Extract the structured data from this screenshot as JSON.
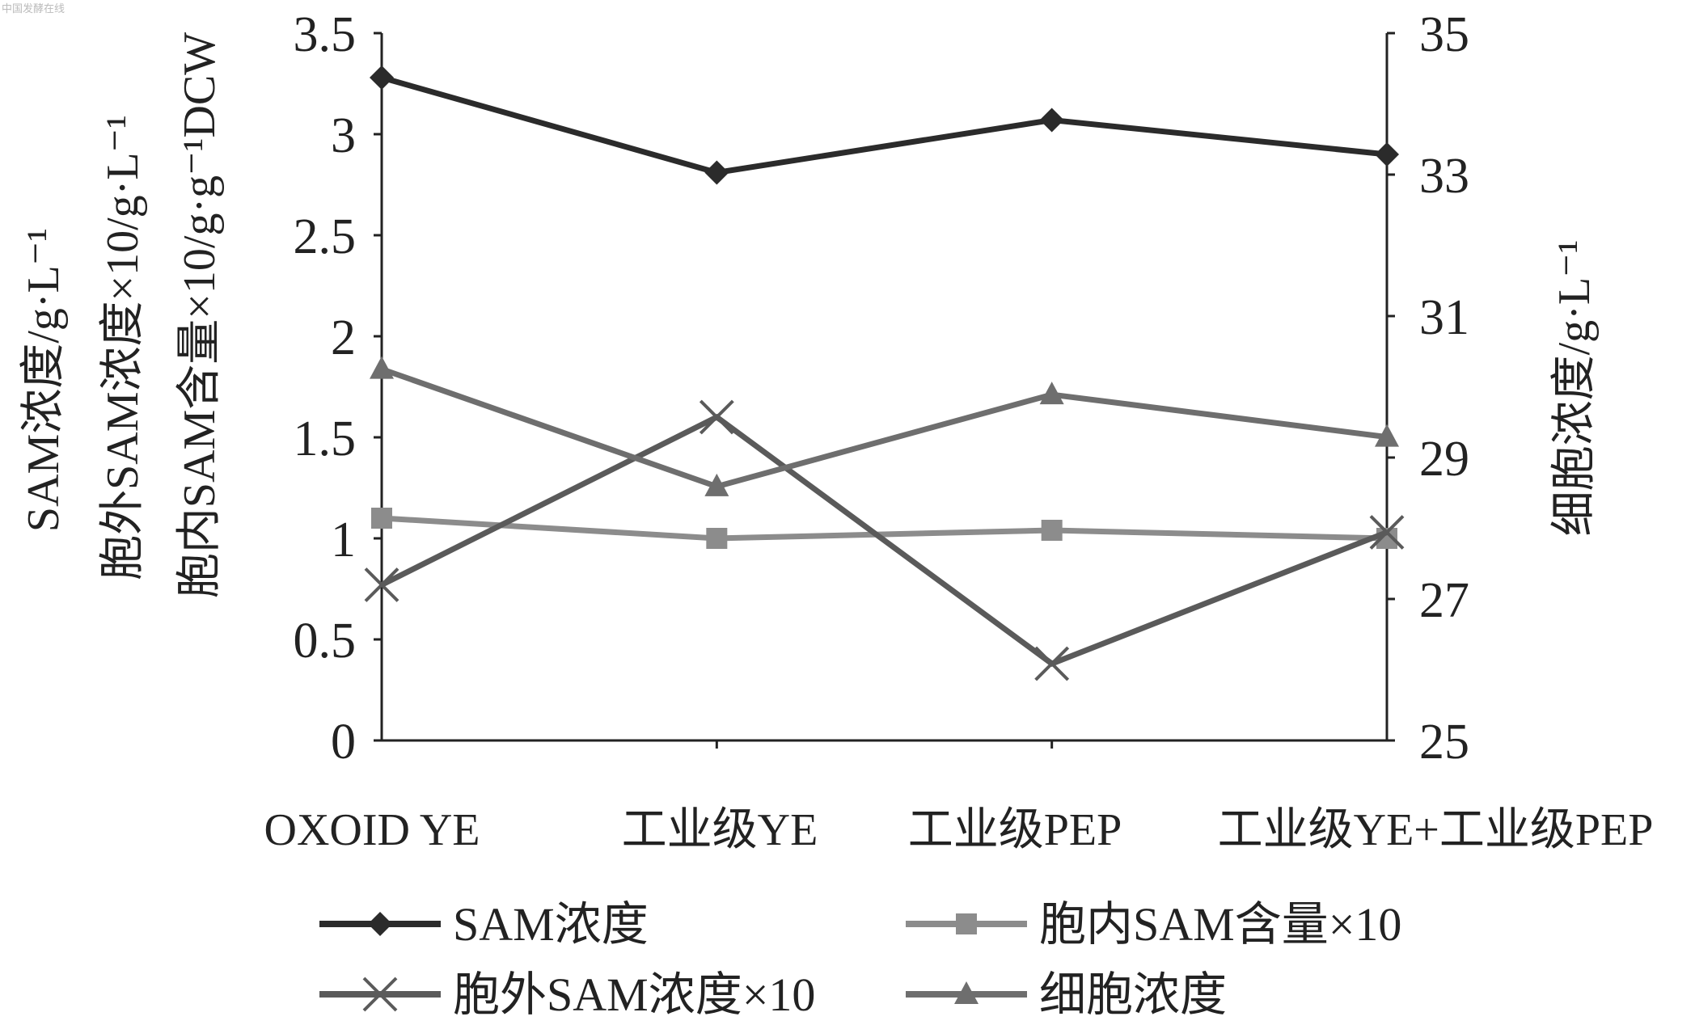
{
  "watermark": "中国发酵在线",
  "chart_data": {
    "type": "line",
    "categories": [
      "OXOID YE",
      "工业级YE",
      "工业级PEP",
      "工业级YE+工业级PEP"
    ],
    "left_axis": {
      "labels": [
        "SAM浓度/g·L⁻¹",
        "胞外SAM浓度×10/g·L⁻¹",
        "胞内SAM含量×10/g·g⁻¹DCW"
      ],
      "ylim": [
        0,
        3.5
      ],
      "ticks": [
        0,
        0.5,
        1,
        1.5,
        2,
        2.5,
        3,
        3.5
      ],
      "tick_labels": [
        "0",
        "0.5",
        "1",
        "1.5",
        "2",
        "2.5",
        "3",
        "3.5"
      ]
    },
    "right_axis": {
      "label": "细胞浓度/g·L⁻¹",
      "ylim": [
        25,
        35
      ],
      "ticks": [
        25,
        27,
        29,
        31,
        33,
        35
      ],
      "tick_labels": [
        "25",
        "27",
        "29",
        "31",
        "33",
        "35"
      ]
    },
    "series": [
      {
        "name": "SAM浓度",
        "axis": "left",
        "marker": "diamond",
        "color": "#2b2b2b",
        "values": [
          3.28,
          2.81,
          3.07,
          2.9
        ]
      },
      {
        "name": "胞内SAM含量×10",
        "axis": "left",
        "marker": "square",
        "color": "#8c8c8c",
        "values": [
          1.1,
          1.0,
          1.04,
          1.0
        ]
      },
      {
        "name": "胞外SAM浓度×10",
        "axis": "left",
        "marker": "x",
        "color": "#5a5a5a",
        "values": [
          0.77,
          1.6,
          0.38,
          1.03
        ]
      },
      {
        "name": "细胞浓度",
        "axis": "right",
        "marker": "triangle",
        "color": "#6e6e6e",
        "values": [
          30.25,
          28.59,
          29.89,
          29.29
        ]
      }
    ],
    "legend": "bottom",
    "grid": false
  }
}
